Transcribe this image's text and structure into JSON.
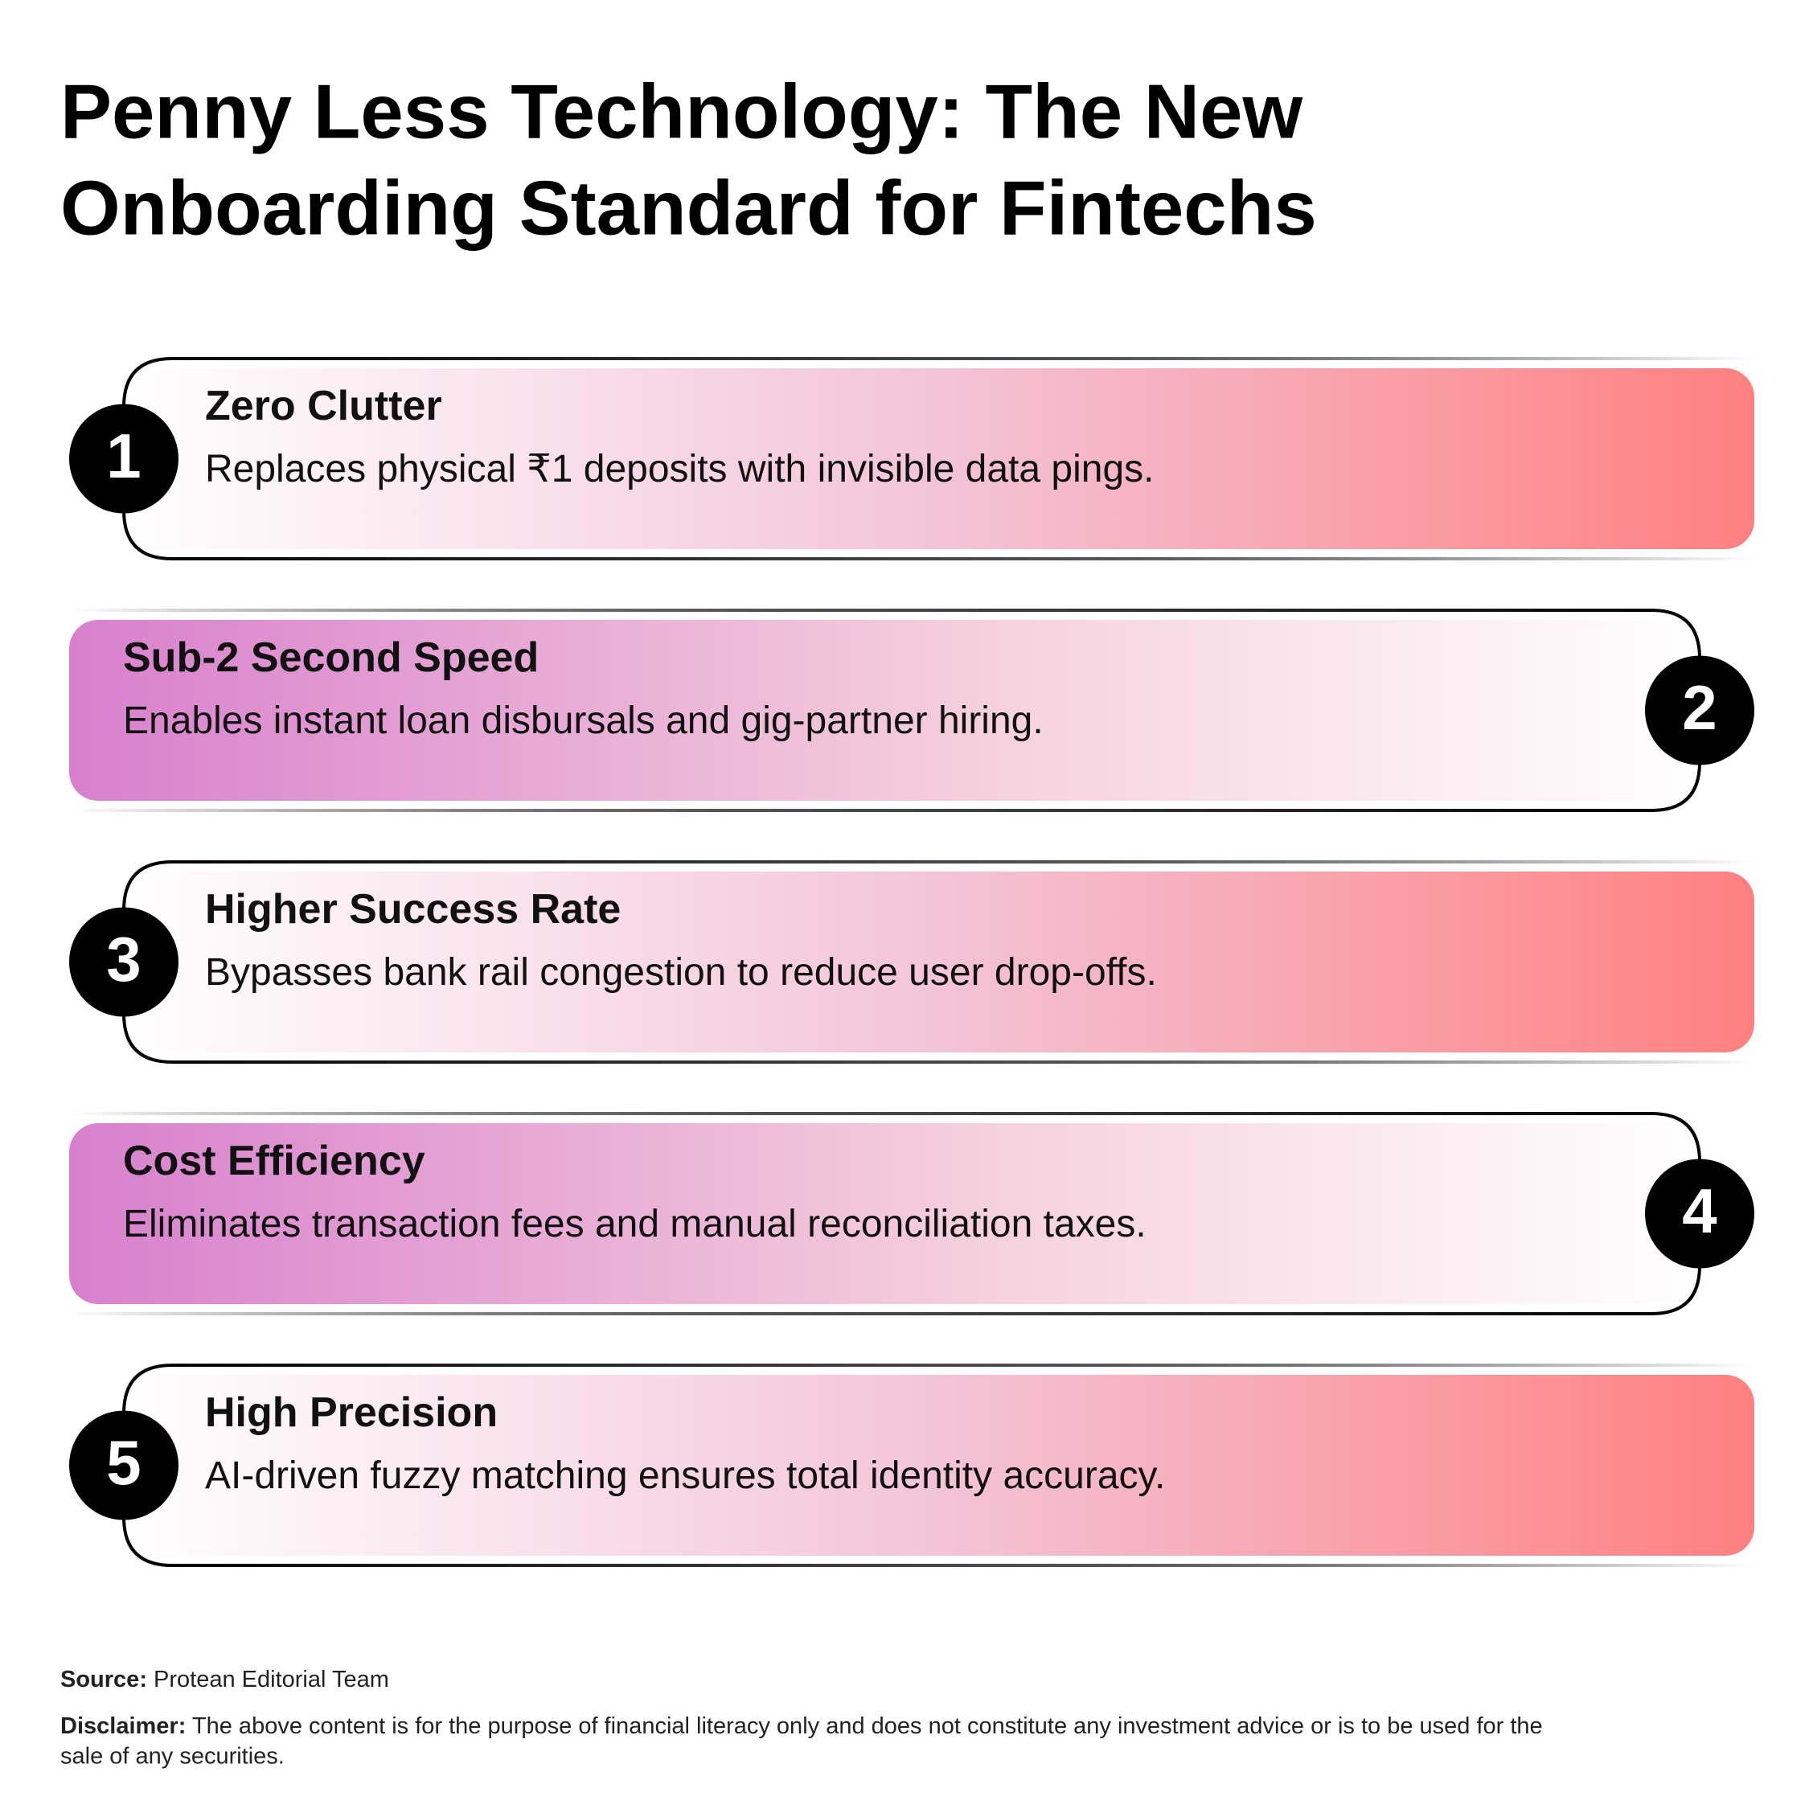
{
  "title": {
    "line1": "Penny Less Technology: The New",
    "line2": "Onboarding Standard for Fintechs"
  },
  "cards": [
    {
      "number": "1",
      "heading": "Zero Clutter",
      "description": "Replaces physical ₹1 deposits with invisible data pings."
    },
    {
      "number": "2",
      "heading": "Sub-2 Second Speed",
      "description": "Enables instant loan disbursals and gig-partner hiring."
    },
    {
      "number": "3",
      "heading": "Higher Success Rate",
      "description": "Bypasses bank rail congestion to reduce user drop-offs."
    },
    {
      "number": "4",
      "heading": "Cost Efficiency",
      "description": "Eliminates transaction fees and manual reconciliation taxes."
    },
    {
      "number": "5",
      "heading": "High Precision",
      "description": "AI-driven fuzzy matching ensures total identity accuracy."
    }
  ],
  "footer": {
    "source_label": "Source:",
    "source_text": "Protean Editorial Team",
    "disclaimer_label": "Disclaimer:",
    "disclaimer_line1": "The above content is for the purpose of financial literacy only and does not constitute any investment advice or is to be used for the",
    "disclaimer_line2": "sale of any securities."
  }
}
